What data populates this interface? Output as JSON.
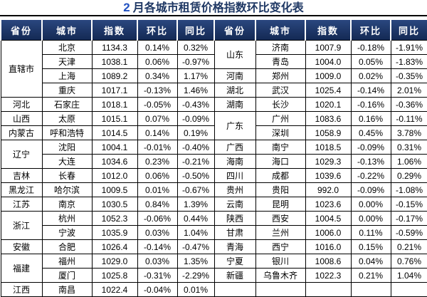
{
  "title": {
    "month": "2",
    "text": "月各城市租赁价格指数环比变化表"
  },
  "columns": [
    "省份",
    "城市",
    "指数",
    "环比",
    "同比"
  ],
  "colors": {
    "header_bg": "#1B3263",
    "header_text": "#FFFFFF",
    "title_text": "#1F3864",
    "title_month_number": "#2151C1",
    "grid": "#000000",
    "cell_bg": "#FFFFFF"
  },
  "left": {
    "groups": [
      {
        "province": "直辖市",
        "cities": [
          {
            "city": "北京",
            "index": "1134.3",
            "mom": "0.14%",
            "yoy": "0.32%"
          },
          {
            "city": "天津",
            "index": "1038.1",
            "mom": "0.06%",
            "yoy": "-0.97%"
          },
          {
            "city": "上海",
            "index": "1089.2",
            "mom": "0.34%",
            "yoy": "1.17%"
          },
          {
            "city": "重庆",
            "index": "1017.1",
            "mom": "-0.13%",
            "yoy": "1.46%"
          }
        ]
      },
      {
        "province": "河北",
        "cities": [
          {
            "city": "石家庄",
            "index": "1018.1",
            "mom": "-0.05%",
            "yoy": "-0.43%"
          }
        ]
      },
      {
        "province": "山西",
        "cities": [
          {
            "city": "太原",
            "index": "1015.1",
            "mom": "0.07%",
            "yoy": "-0.09%"
          }
        ]
      },
      {
        "province": "内蒙古",
        "cities": [
          {
            "city": "呼和浩特",
            "index": "1014.5",
            "mom": "0.14%",
            "yoy": "0.19%"
          }
        ]
      },
      {
        "province": "辽宁",
        "cities": [
          {
            "city": "沈阳",
            "index": "1004.1",
            "mom": "-0.01%",
            "yoy": "-0.40%"
          },
          {
            "city": "大连",
            "index": "1034.6",
            "mom": "0.23%",
            "yoy": "-0.21%"
          }
        ]
      },
      {
        "province": "吉林",
        "cities": [
          {
            "city": "长春",
            "index": "1012.0",
            "mom": "0.06%",
            "yoy": "-0.50%"
          }
        ]
      },
      {
        "province": "黑龙江",
        "cities": [
          {
            "city": "哈尔滨",
            "index": "1009.5",
            "mom": "0.01%",
            "yoy": "-0.67%"
          }
        ]
      },
      {
        "province": "江苏",
        "cities": [
          {
            "city": "南京",
            "index": "1030.5",
            "mom": "0.84%",
            "yoy": "1.39%"
          }
        ]
      },
      {
        "province": "浙江",
        "cities": [
          {
            "city": "杭州",
            "index": "1052.3",
            "mom": "-0.06%",
            "yoy": "0.44%"
          },
          {
            "city": "宁波",
            "index": "1035.9",
            "mom": "0.03%",
            "yoy": "1.04%"
          }
        ]
      },
      {
        "province": "安徽",
        "cities": [
          {
            "city": "合肥",
            "index": "1026.4",
            "mom": "-0.14%",
            "yoy": "-0.47%"
          }
        ]
      },
      {
        "province": "福建",
        "cities": [
          {
            "city": "福州",
            "index": "1029.0",
            "mom": "0.03%",
            "yoy": "1.35%"
          },
          {
            "city": "厦门",
            "index": "1025.8",
            "mom": "-0.31%",
            "yoy": "-2.29%"
          }
        ]
      },
      {
        "province": "江西",
        "cities": [
          {
            "city": "南昌",
            "index": "1022.4",
            "mom": "-0.04%",
            "yoy": "0.01%"
          }
        ]
      }
    ]
  },
  "right": {
    "groups": [
      {
        "province": "山东",
        "cities": [
          {
            "city": "济南",
            "index": "1007.9",
            "mom": "-0.18%",
            "yoy": "-1.91%"
          },
          {
            "city": "青岛",
            "index": "1004.0",
            "mom": "0.05%",
            "yoy": "-1.83%"
          }
        ]
      },
      {
        "province": "河南",
        "cities": [
          {
            "city": "郑州",
            "index": "1009.0",
            "mom": "0.02%",
            "yoy": "-0.35%"
          }
        ]
      },
      {
        "province": "湖北",
        "cities": [
          {
            "city": "武汉",
            "index": "1025.4",
            "mom": "-0.14%",
            "yoy": "2.01%"
          }
        ]
      },
      {
        "province": "湖南",
        "cities": [
          {
            "city": "长沙",
            "index": "1020.1",
            "mom": "-0.16%",
            "yoy": "-0.36%"
          }
        ]
      },
      {
        "province": "广东",
        "cities": [
          {
            "city": "广州",
            "index": "1083.6",
            "mom": "0.16%",
            "yoy": "-0.11%"
          },
          {
            "city": "深圳",
            "index": "1058.9",
            "mom": "0.45%",
            "yoy": "3.78%"
          }
        ]
      },
      {
        "province": "广西",
        "cities": [
          {
            "city": "南宁",
            "index": "1018.5",
            "mom": "-0.09%",
            "yoy": "0.31%"
          }
        ]
      },
      {
        "province": "海南",
        "cities": [
          {
            "city": "海口",
            "index": "1029.3",
            "mom": "-0.13%",
            "yoy": "1.06%"
          }
        ]
      },
      {
        "province": "四川",
        "cities": [
          {
            "city": "成都",
            "index": "1039.6",
            "mom": "-0.22%",
            "yoy": "0.29%"
          }
        ]
      },
      {
        "province": "贵州",
        "cities": [
          {
            "city": "贵阳",
            "index": "992.0",
            "mom": "-0.09%",
            "yoy": "-1.08%"
          }
        ]
      },
      {
        "province": "云南",
        "cities": [
          {
            "city": "昆明",
            "index": "1023.6",
            "mom": "0.00%",
            "yoy": "-0.15%"
          }
        ]
      },
      {
        "province": "陕西",
        "cities": [
          {
            "city": "西安",
            "index": "1004.5",
            "mom": "0.00%",
            "yoy": "-0.17%"
          }
        ]
      },
      {
        "province": "甘肃",
        "cities": [
          {
            "city": "兰州",
            "index": "1006.0",
            "mom": "0.11%",
            "yoy": "-0.59%"
          }
        ]
      },
      {
        "province": "青海",
        "cities": [
          {
            "city": "西宁",
            "index": "1016.0",
            "mom": "0.15%",
            "yoy": "0.21%"
          }
        ]
      },
      {
        "province": "宁夏",
        "cities": [
          {
            "city": "银川",
            "index": "1008.6",
            "mom": "0.04%",
            "yoy": "0.76%"
          }
        ]
      },
      {
        "province": "新疆",
        "cities": [
          {
            "city": "乌鲁木齐",
            "index": "1022.3",
            "mom": "0.21%",
            "yoy": "1.04%"
          }
        ]
      },
      {
        "province": "",
        "cities": [
          {
            "city": "",
            "index": "",
            "mom": "",
            "yoy": ""
          }
        ]
      }
    ]
  },
  "chart_data": {
    "type": "table",
    "title": "2 月各城市租赁价格指数环比变化表",
    "columns": [
      "省份",
      "城市",
      "指数",
      "环比",
      "同比"
    ],
    "layout": "two side-by-side panels sharing the same five columns; province cells merged vertically; last right-panel row empty",
    "rows": [
      [
        "直辖市",
        "北京",
        "1134.3",
        "0.14%",
        "0.32%"
      ],
      [
        "直辖市",
        "天津",
        "1038.1",
        "0.06%",
        "-0.97%"
      ],
      [
        "直辖市",
        "上海",
        "1089.2",
        "0.34%",
        "1.17%"
      ],
      [
        "直辖市",
        "重庆",
        "1017.1",
        "-0.13%",
        "1.46%"
      ],
      [
        "河北",
        "石家庄",
        "1018.1",
        "-0.05%",
        "-0.43%"
      ],
      [
        "山西",
        "太原",
        "1015.1",
        "0.07%",
        "-0.09%"
      ],
      [
        "内蒙古",
        "呼和浩特",
        "1014.5",
        "0.14%",
        "0.19%"
      ],
      [
        "辽宁",
        "沈阳",
        "1004.1",
        "-0.01%",
        "-0.40%"
      ],
      [
        "辽宁",
        "大连",
        "1034.6",
        "0.23%",
        "-0.21%"
      ],
      [
        "吉林",
        "长春",
        "1012.0",
        "0.06%",
        "-0.50%"
      ],
      [
        "黑龙江",
        "哈尔滨",
        "1009.5",
        "0.01%",
        "-0.67%"
      ],
      [
        "江苏",
        "南京",
        "1030.5",
        "0.84%",
        "1.39%"
      ],
      [
        "浙江",
        "杭州",
        "1052.3",
        "-0.06%",
        "0.44%"
      ],
      [
        "浙江",
        "宁波",
        "1035.9",
        "0.03%",
        "1.04%"
      ],
      [
        "安徽",
        "合肥",
        "1026.4",
        "-0.14%",
        "-0.47%"
      ],
      [
        "福建",
        "福州",
        "1029.0",
        "0.03%",
        "1.35%"
      ],
      [
        "福建",
        "厦门",
        "1025.8",
        "-0.31%",
        "-2.29%"
      ],
      [
        "江西",
        "南昌",
        "1022.4",
        "-0.04%",
        "0.01%"
      ],
      [
        "山东",
        "济南",
        "1007.9",
        "-0.18%",
        "-1.91%"
      ],
      [
        "山东",
        "青岛",
        "1004.0",
        "0.05%",
        "-1.83%"
      ],
      [
        "河南",
        "郑州",
        "1009.0",
        "0.02%",
        "-0.35%"
      ],
      [
        "湖北",
        "武汉",
        "1025.4",
        "-0.14%",
        "2.01%"
      ],
      [
        "湖南",
        "长沙",
        "1020.1",
        "-0.16%",
        "-0.36%"
      ],
      [
        "广东",
        "广州",
        "1083.6",
        "0.16%",
        "-0.11%"
      ],
      [
        "广东",
        "深圳",
        "1058.9",
        "0.45%",
        "3.78%"
      ],
      [
        "广西",
        "南宁",
        "1018.5",
        "-0.09%",
        "0.31%"
      ],
      [
        "海南",
        "海口",
        "1029.3",
        "-0.13%",
        "1.06%"
      ],
      [
        "四川",
        "成都",
        "1039.6",
        "-0.22%",
        "0.29%"
      ],
      [
        "贵州",
        "贵阳",
        "992.0",
        "-0.09%",
        "-1.08%"
      ],
      [
        "云南",
        "昆明",
        "1023.6",
        "0.00%",
        "-0.15%"
      ],
      [
        "陕西",
        "西安",
        "1004.5",
        "0.00%",
        "-0.17%"
      ],
      [
        "甘肃",
        "兰州",
        "1006.0",
        "0.11%",
        "-0.59%"
      ],
      [
        "青海",
        "西宁",
        "1016.0",
        "0.15%",
        "0.21%"
      ],
      [
        "宁夏",
        "银川",
        "1008.6",
        "0.04%",
        "0.76%"
      ],
      [
        "新疆",
        "乌鲁木齐",
        "1022.3",
        "0.21%",
        "1.04%"
      ]
    ]
  }
}
